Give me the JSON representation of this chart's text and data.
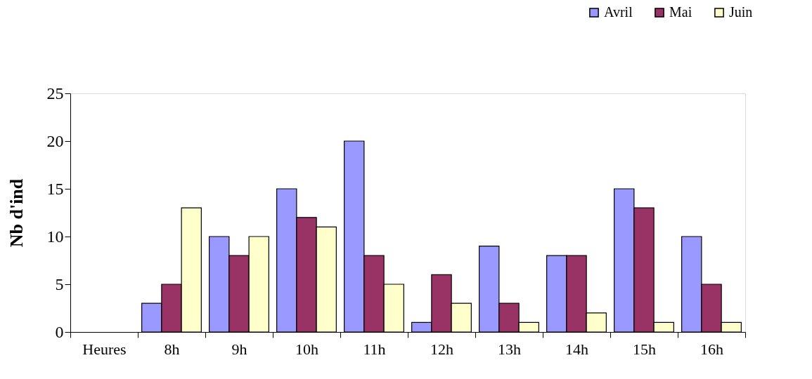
{
  "chart_data": {
    "type": "bar",
    "ylabel": "Nb d'ind",
    "categories": [
      "Heures",
      "8h",
      "9h",
      "10h",
      "11h",
      "12h",
      "13h",
      "14h",
      "15h",
      "16h"
    ],
    "series": [
      {
        "name": "Avril",
        "color": "#9999ff",
        "values": [
          null,
          3,
          10,
          15,
          20,
          1,
          9,
          8,
          15,
          10
        ]
      },
      {
        "name": "Mai",
        "color": "#993366",
        "values": [
          null,
          5,
          8,
          12,
          8,
          6,
          3,
          8,
          13,
          5
        ]
      },
      {
        "name": "Juin",
        "color": "#ffffcc",
        "values": [
          null,
          13,
          10,
          11,
          5,
          3,
          1,
          2,
          1,
          1
        ]
      }
    ],
    "ylim": [
      0,
      25
    ],
    "yticks": [
      0,
      5,
      10,
      15,
      20,
      25
    ],
    "grid": false,
    "legend": "top right"
  }
}
